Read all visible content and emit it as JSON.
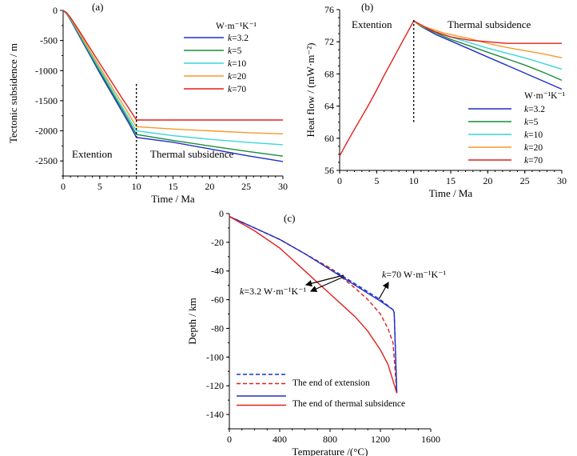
{
  "panels": {
    "a": {
      "label": "(a)",
      "region_left": "Extention",
      "region_right": "Thermal subsidence",
      "legend_title": "W·m⁻¹K⁻¹"
    },
    "b": {
      "label": "(b)",
      "region_left": "Extention",
      "region_right": "Thermal subsidence",
      "legend_title": "W·m⁻¹K⁻¹"
    },
    "c": {
      "label": "(c)",
      "annotation_k32": "k=3.2 W·m⁻¹K⁻¹",
      "annotation_k70": "k=70 W·m⁻¹K⁻¹"
    }
  },
  "chart_data": [
    {
      "type": "line",
      "title": "(a)",
      "xlabel": "Time / Ma",
      "ylabel": "Tectonic subsidence / m",
      "xlim": [
        0,
        30
      ],
      "ylim": [
        -2750,
        0
      ],
      "xticks": [
        0,
        5,
        10,
        15,
        20,
        25,
        30
      ],
      "yticks": [
        0,
        -500,
        -1000,
        -1500,
        -2000,
        -2500
      ],
      "legend_title": "W·m⁻¹K⁻¹",
      "series": [
        {
          "name": "k=3.2",
          "color": "#1f2fc8",
          "x": [
            0,
            0.5,
            1,
            2,
            3,
            4,
            5,
            6,
            7,
            8,
            9,
            10,
            15,
            20,
            25,
            30
          ],
          "y": [
            0,
            -60,
            -160,
            -380,
            -600,
            -820,
            -1040,
            -1250,
            -1460,
            -1670,
            -1880,
            -2110,
            -2190,
            -2300,
            -2410,
            -2510
          ]
        },
        {
          "name": "k=5",
          "color": "#1e8c3a",
          "x": [
            0,
            0.5,
            1,
            2,
            3,
            4,
            5,
            6,
            7,
            8,
            9,
            10,
            15,
            20,
            25,
            30
          ],
          "y": [
            0,
            -55,
            -150,
            -360,
            -580,
            -800,
            -1010,
            -1220,
            -1430,
            -1630,
            -1840,
            -2060,
            -2160,
            -2250,
            -2340,
            -2420
          ]
        },
        {
          "name": "k=10",
          "color": "#38d6dc",
          "x": [
            0,
            0.5,
            1,
            2,
            3,
            4,
            5,
            6,
            7,
            8,
            9,
            10,
            15,
            20,
            25,
            30
          ],
          "y": [
            0,
            -50,
            -140,
            -345,
            -560,
            -770,
            -980,
            -1180,
            -1390,
            -1590,
            -1790,
            -2000,
            -2080,
            -2140,
            -2190,
            -2230
          ]
        },
        {
          "name": "k=20",
          "color": "#f59a2a",
          "x": [
            0,
            0.5,
            1,
            2,
            3,
            4,
            5,
            6,
            7,
            8,
            9,
            10,
            15,
            20,
            25,
            30
          ],
          "y": [
            0,
            -45,
            -130,
            -330,
            -535,
            -740,
            -940,
            -1140,
            -1340,
            -1530,
            -1730,
            -1930,
            -1970,
            -2000,
            -2030,
            -2050
          ]
        },
        {
          "name": "k=70",
          "color": "#e0201c",
          "x": [
            0,
            0.5,
            1,
            2,
            3,
            4,
            5,
            6,
            7,
            8,
            9,
            10,
            15,
            20,
            25,
            30
          ],
          "y": [
            0,
            -40,
            -120,
            -300,
            -495,
            -690,
            -880,
            -1070,
            -1260,
            -1450,
            -1630,
            -1820,
            -1820,
            -1820,
            -1820,
            -1820
          ]
        }
      ]
    },
    {
      "type": "line",
      "title": "(b)",
      "xlabel": "Time / Ma",
      "ylabel": "Heat flow / (mW·m⁻²)",
      "xlim": [
        0,
        30
      ],
      "ylim": [
        56,
        76
      ],
      "xticks": [
        0,
        5,
        10,
        15,
        20,
        25,
        30
      ],
      "yticks": [
        56,
        60,
        64,
        68,
        72,
        76
      ],
      "legend_title": "W·m⁻¹K⁻¹",
      "series": [
        {
          "name": "k=3.2",
          "color": "#1f2fc8",
          "x": [
            10,
            11,
            12,
            13,
            14,
            15,
            17.5,
            20,
            22.5,
            25,
            27.5,
            30
          ],
          "y": [
            74.6,
            73.9,
            73.4,
            72.9,
            72.5,
            72.1,
            71.1,
            70.1,
            69.1,
            68.1,
            67.1,
            66.1
          ]
        },
        {
          "name": "k=5",
          "color": "#1e8c3a",
          "x": [
            10,
            11,
            12,
            13,
            14,
            15,
            17.5,
            20,
            22.5,
            25,
            27.5,
            30
          ],
          "y": [
            74.6,
            73.9,
            73.5,
            73.1,
            72.7,
            72.3,
            71.5,
            70.7,
            69.9,
            69.1,
            68.2,
            67.2
          ]
        },
        {
          "name": "k=10",
          "color": "#38d6dc",
          "x": [
            10,
            11,
            12,
            13,
            14,
            15,
            17.5,
            20,
            22.5,
            25,
            27.5,
            30
          ],
          "y": [
            74.6,
            74.0,
            73.6,
            73.2,
            72.9,
            72.6,
            71.9,
            71.2,
            70.6,
            70.0,
            69.3,
            68.6
          ]
        },
        {
          "name": "k=20",
          "color": "#f59a2a",
          "x": [
            10,
            11,
            12,
            13,
            14,
            15,
            17.5,
            20,
            22.5,
            25,
            27.5,
            30
          ],
          "y": [
            74.6,
            74.0,
            73.7,
            73.4,
            73.1,
            72.9,
            72.4,
            71.8,
            71.3,
            70.9,
            70.5,
            70.0
          ]
        },
        {
          "name": "k=70",
          "color": "#e0201c",
          "x": [
            0,
            1,
            2,
            3,
            4,
            5,
            6,
            7,
            8,
            9,
            10,
            11,
            12,
            13,
            14,
            15,
            17.5,
            20,
            22.5,
            25,
            27.5,
            30
          ],
          "y": [
            57.8,
            59.5,
            61.1,
            62.7,
            64.3,
            66.0,
            67.8,
            69.5,
            71.2,
            72.9,
            74.6,
            74.1,
            73.6,
            73.2,
            72.9,
            72.6,
            72.2,
            72.0,
            71.8,
            71.8,
            71.8,
            71.8
          ]
        }
      ]
    },
    {
      "type": "line",
      "title": "(c)",
      "xlabel": "Temperature /(°C)",
      "ylabel": "Depth / km",
      "xlim": [
        0,
        1600
      ],
      "ylim": [
        -150,
        0
      ],
      "xticks": [
        0,
        400,
        800,
        1200,
        1600
      ],
      "yticks": [
        0,
        -20,
        -40,
        -60,
        -80,
        -100,
        -120,
        -140
      ],
      "series": [
        {
          "name": "The end of extension",
          "group": "k=70",
          "color": "#1f2fc8",
          "dash": "dashed",
          "x": [
            0,
            200,
            400,
            600,
            800,
            1000,
            1200,
            1300,
            1310,
            1330
          ],
          "y": [
            -2,
            -10,
            -18,
            -28,
            -38,
            -49,
            -60,
            -67,
            -70,
            -125
          ]
        },
        {
          "name": "The end of extension",
          "group": "k=3.2",
          "color": "#e0201c",
          "dash": "dashed",
          "x": [
            0,
            200,
            400,
            600,
            800,
            900,
            1000,
            1100,
            1200,
            1260,
            1300,
            1330
          ],
          "y": [
            -2,
            -10,
            -18,
            -28,
            -38,
            -45,
            -52,
            -60,
            -70,
            -80,
            -90,
            -125
          ]
        },
        {
          "name": "The end of thermal subsidence",
          "group": "k=70",
          "color": "#1f2fc8",
          "dash": "solid",
          "x": [
            0,
            200,
            400,
            600,
            800,
            1000,
            1200,
            1300,
            1310,
            1330
          ],
          "y": [
            -2,
            -10,
            -18,
            -28,
            -39,
            -50,
            -61,
            -67,
            -69,
            -125
          ]
        },
        {
          "name": "The end of thermal subsidence",
          "group": "k=3.2",
          "color": "#e0201c",
          "dash": "solid",
          "x": [
            0,
            200,
            400,
            500,
            600,
            700,
            800,
            900,
            1000,
            1100,
            1200,
            1260,
            1330
          ],
          "y": [
            -2,
            -12,
            -24,
            -32,
            -40,
            -48,
            -56,
            -64,
            -72,
            -82,
            -95,
            -105,
            -125
          ]
        }
      ]
    }
  ]
}
